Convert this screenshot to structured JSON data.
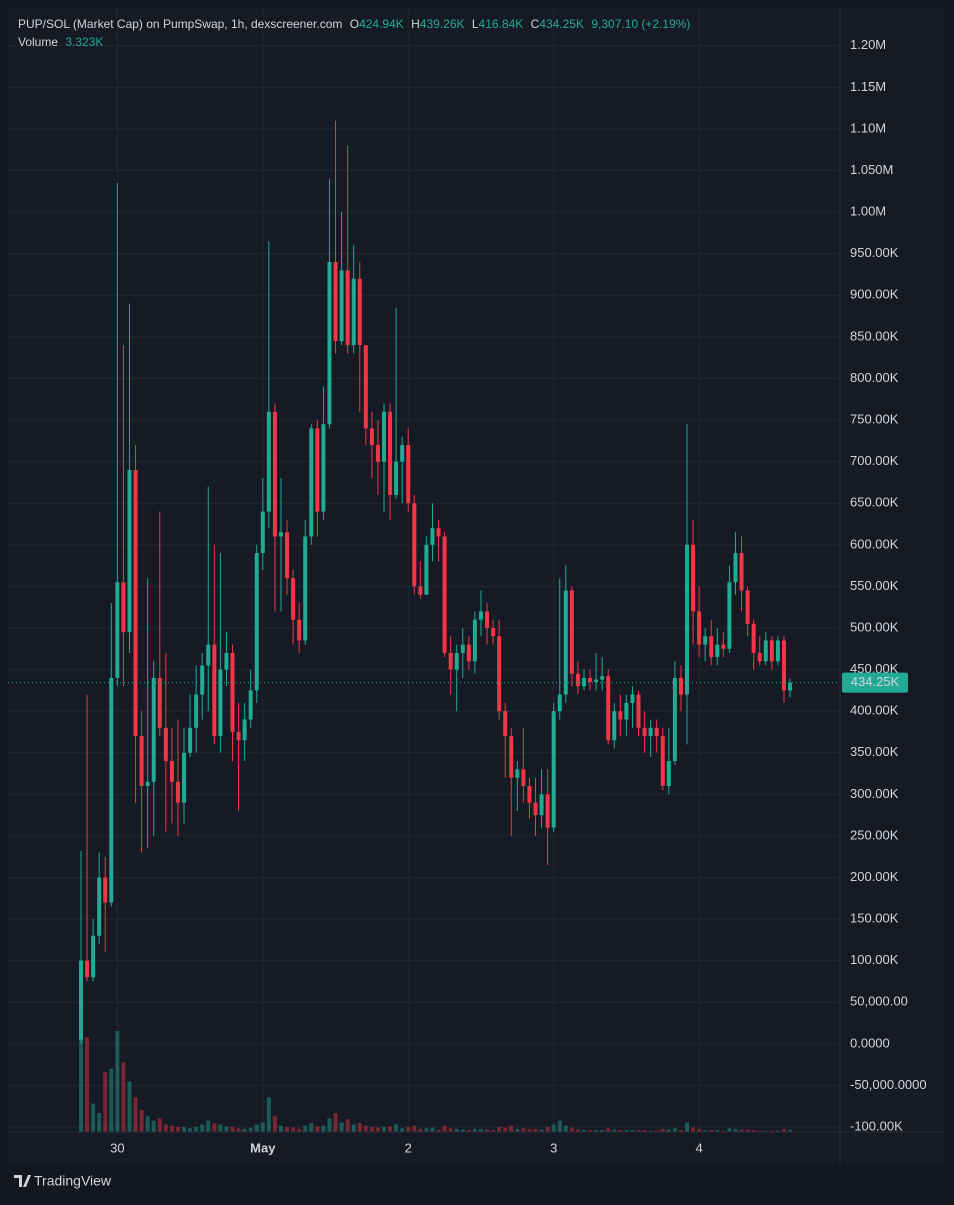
{
  "chart_data": {
    "type": "candlestick",
    "title": "PUP/SOL (Market Cap) on PumpSwap, 1h, dexscreener.com",
    "ohlc_legend": [
      {
        "key": "O",
        "text": "424.94K"
      },
      {
        "key": "H",
        "text": "439.26K"
      },
      {
        "key": "L",
        "text": "416.84K"
      },
      {
        "key": "C",
        "text": "434.25K"
      }
    ],
    "change": "9,307.10 (+2.19%)",
    "volume_name": "Volume",
    "volume_text": "3.323K",
    "branding": "TradingView",
    "up_color": "#22ab94",
    "down_color": "#f23645",
    "categories": [
      null,
      null,
      null,
      null,
      null,
      null,
      "30",
      null,
      null,
      null,
      null,
      null,
      null,
      null,
      null,
      null,
      null,
      null,
      null,
      null,
      null,
      null,
      null,
      null,
      null,
      null,
      null,
      null,
      null,
      null,
      "May",
      null,
      null,
      null,
      null,
      null,
      null,
      null,
      null,
      null,
      null,
      null,
      null,
      null,
      null,
      null,
      null,
      null,
      null,
      null,
      null,
      null,
      null,
      null,
      "2",
      null,
      null,
      null,
      null,
      null,
      null,
      null,
      null,
      null,
      null,
      null,
      null,
      null,
      null,
      null,
      null,
      null,
      null,
      null,
      null,
      null,
      null,
      null,
      "3",
      null,
      null,
      null,
      null,
      null,
      null,
      null,
      null,
      null,
      null,
      null,
      null,
      null,
      null,
      null,
      null,
      null,
      null,
      null,
      null,
      null,
      null,
      null,
      "4",
      null,
      null,
      null,
      null,
      null,
      null,
      null,
      null,
      null,
      null,
      null,
      null,
      null,
      null,
      null
    ],
    "open": [
      5000,
      100000,
      80000,
      130000,
      200000,
      170000,
      440000,
      555000,
      495000,
      690000,
      370000,
      310000,
      315000,
      440000,
      380000,
      340000,
      315000,
      290000,
      350000,
      380000,
      420000,
      455000,
      480000,
      370000,
      450000,
      470000,
      375000,
      365000,
      390000,
      425000,
      590000,
      640000,
      760000,
      610000,
      615000,
      560000,
      510000,
      485000,
      610000,
      740000,
      640000,
      745000,
      940000,
      845000,
      930000,
      840000,
      920000,
      840000,
      740000,
      720000,
      700000,
      760000,
      660000,
      700000,
      720000,
      650000,
      550000,
      540000,
      600000,
      620000,
      610000,
      470000,
      450000,
      470000,
      480000,
      460000,
      510000,
      520000,
      500000,
      490000,
      400000,
      370000,
      320000,
      330000,
      310000,
      290000,
      275000,
      300000,
      260000,
      400000,
      420000,
      545000,
      445000,
      430000,
      440000,
      435000,
      438000,
      442000,
      365000,
      400000,
      390000,
      410000,
      420000,
      380000,
      370000,
      380000,
      370000,
      310000,
      340000,
      440000,
      420000,
      600000,
      520000,
      480000,
      490000,
      465000,
      480000,
      475000,
      555000,
      590000,
      545000,
      505000,
      470000,
      460000,
      485000,
      460000,
      485000,
      424940
    ],
    "high": [
      232000,
      420000,
      150000,
      230000,
      225000,
      530000,
      1035000,
      840000,
      890000,
      720000,
      400000,
      560000,
      460000,
      640000,
      470000,
      380000,
      390000,
      380000,
      420000,
      455000,
      470000,
      670000,
      600000,
      590000,
      495000,
      480000,
      410000,
      410000,
      450000,
      600000,
      680000,
      965000,
      770000,
      680000,
      630000,
      570000,
      530000,
      630000,
      745000,
      750000,
      790000,
      1040000,
      1110000,
      1000000,
      1080000,
      960000,
      940000,
      840000,
      760000,
      750000,
      770000,
      770000,
      885000,
      730000,
      740000,
      660000,
      580000,
      610000,
      650000,
      630000,
      615000,
      490000,
      480000,
      500000,
      490000,
      520000,
      545000,
      530000,
      510000,
      510000,
      410000,
      380000,
      340000,
      380000,
      320000,
      320000,
      330000,
      330000,
      410000,
      560000,
      575000,
      550000,
      460000,
      450000,
      450000,
      470000,
      465000,
      450000,
      410000,
      420000,
      420000,
      430000,
      425000,
      400000,
      390000,
      390000,
      380000,
      380000,
      460000,
      455000,
      745000,
      630000,
      550000,
      500000,
      510000,
      500000,
      495000,
      575000,
      615000,
      610000,
      550000,
      510000,
      490000,
      495000,
      490000,
      490000,
      490000,
      439260
    ],
    "low": [
      0,
      75000,
      75000,
      120000,
      110000,
      165000,
      430000,
      430000,
      470000,
      290000,
      230000,
      235000,
      250000,
      370000,
      255000,
      265000,
      250000,
      265000,
      345000,
      350000,
      390000,
      400000,
      360000,
      350000,
      430000,
      340000,
      280000,
      340000,
      380000,
      410000,
      570000,
      620000,
      520000,
      520000,
      540000,
      480000,
      470000,
      480000,
      600000,
      610000,
      630000,
      740000,
      830000,
      840000,
      830000,
      830000,
      760000,
      720000,
      680000,
      660000,
      640000,
      630000,
      655000,
      650000,
      640000,
      540000,
      535000,
      540000,
      580000,
      580000,
      465000,
      420000,
      400000,
      440000,
      450000,
      445000,
      490000,
      480000,
      480000,
      390000,
      320000,
      250000,
      280000,
      290000,
      270000,
      250000,
      260000,
      215000,
      255000,
      390000,
      410000,
      430000,
      420000,
      425000,
      425000,
      425000,
      425000,
      360000,
      355000,
      370000,
      370000,
      380000,
      370000,
      350000,
      345000,
      350000,
      305000,
      300000,
      335000,
      400000,
      360000,
      480000,
      465000,
      460000,
      455000,
      455000,
      465000,
      470000,
      540000,
      520000,
      490000,
      450000,
      455000,
      455000,
      450000,
      455000,
      410000,
      416840
    ],
    "close": [
      100000,
      80000,
      130000,
      200000,
      170000,
      440000,
      555000,
      495000,
      690000,
      370000,
      310000,
      315000,
      440000,
      380000,
      340000,
      315000,
      290000,
      350000,
      380000,
      420000,
      455000,
      480000,
      370000,
      450000,
      470000,
      375000,
      365000,
      390000,
      425000,
      590000,
      640000,
      760000,
      610000,
      615000,
      560000,
      510000,
      485000,
      610000,
      740000,
      640000,
      745000,
      940000,
      845000,
      930000,
      840000,
      920000,
      840000,
      740000,
      720000,
      700000,
      760000,
      660000,
      700000,
      720000,
      650000,
      550000,
      540000,
      600000,
      620000,
      610000,
      470000,
      450000,
      470000,
      480000,
      460000,
      510000,
      520000,
      500000,
      490000,
      400000,
      370000,
      320000,
      330000,
      310000,
      290000,
      275000,
      300000,
      260000,
      400000,
      420000,
      545000,
      445000,
      430000,
      440000,
      435000,
      438000,
      442000,
      365000,
      400000,
      390000,
      410000,
      420000,
      380000,
      370000,
      380000,
      370000,
      310000,
      340000,
      440000,
      420000,
      600000,
      520000,
      480000,
      490000,
      465000,
      480000,
      475000,
      555000,
      590000,
      545000,
      505000,
      470000,
      460000,
      485000,
      460000,
      485000,
      425000,
      434250
    ],
    "volume": [
      190000,
      150000,
      45000,
      30000,
      95000,
      100000,
      160000,
      110000,
      80000,
      55000,
      35000,
      25000,
      18000,
      22000,
      12000,
      10000,
      8000,
      8000,
      6000,
      8000,
      12000,
      18000,
      14000,
      12000,
      9000,
      8000,
      6000,
      5000,
      7000,
      12000,
      15000,
      55000,
      25000,
      10000,
      8000,
      7000,
      5000,
      10000,
      14000,
      9000,
      10000,
      22000,
      30000,
      15000,
      20000,
      12000,
      14000,
      10000,
      8000,
      7000,
      8000,
      9000,
      12000,
      6000,
      8000,
      10000,
      5000,
      6000,
      7000,
      4000,
      10000,
      6000,
      5000,
      4000,
      3000,
      5000,
      5000,
      4000,
      3000,
      8000,
      7000,
      10000,
      5000,
      6000,
      5000,
      5000,
      4000,
      8000,
      12000,
      18000,
      10000,
      7000,
      4000,
      3000,
      3000,
      3000,
      3000,
      6000,
      4000,
      3000,
      3000,
      3000,
      3000,
      3000,
      2000,
      2000,
      5000,
      4000,
      6000,
      3000,
      15000,
      7000,
      5000,
      3000,
      3000,
      3000,
      2000,
      6000,
      5000,
      4000,
      4000,
      3000,
      2000,
      2000,
      2000,
      2000,
      5000,
      3323
    ],
    "ylim": [
      -106000,
      1219000
    ],
    "yticks": [
      {
        "value": 1200000,
        "label": "1.20M"
      },
      {
        "value": 1150000,
        "label": "1.15M"
      },
      {
        "value": 1100000,
        "label": "1.10M"
      },
      {
        "value": 1050000,
        "label": "1.050M"
      },
      {
        "value": 1000000,
        "label": "1.00M"
      },
      {
        "value": 950000,
        "label": "950.00K"
      },
      {
        "value": 900000,
        "label": "900.00K"
      },
      {
        "value": 850000,
        "label": "850.00K"
      },
      {
        "value": 800000,
        "label": "800.00K"
      },
      {
        "value": 750000,
        "label": "750.00K"
      },
      {
        "value": 700000,
        "label": "700.00K"
      },
      {
        "value": 650000,
        "label": "650.00K"
      },
      {
        "value": 600000,
        "label": "600.00K"
      },
      {
        "value": 550000,
        "label": "550.00K"
      },
      {
        "value": 500000,
        "label": "500.00K"
      },
      {
        "value": 450000,
        "label": "450.00K"
      },
      {
        "value": 400000,
        "label": "400.00K"
      },
      {
        "value": 350000,
        "label": "350.00K"
      },
      {
        "value": 300000,
        "label": "300.00K"
      },
      {
        "value": 250000,
        "label": "250.00K"
      },
      {
        "value": 200000,
        "label": "200.00K"
      },
      {
        "value": 150000,
        "label": "150.00K"
      },
      {
        "value": 100000,
        "label": "100.00K"
      },
      {
        "value": 50000,
        "label": "50,000.00"
      },
      {
        "value": 0,
        "label": "0.0000"
      },
      {
        "value": -50000,
        "label": "-50,000.0000"
      },
      {
        "value": -100000,
        "label": "-100.00K"
      }
    ],
    "grid": true
  }
}
